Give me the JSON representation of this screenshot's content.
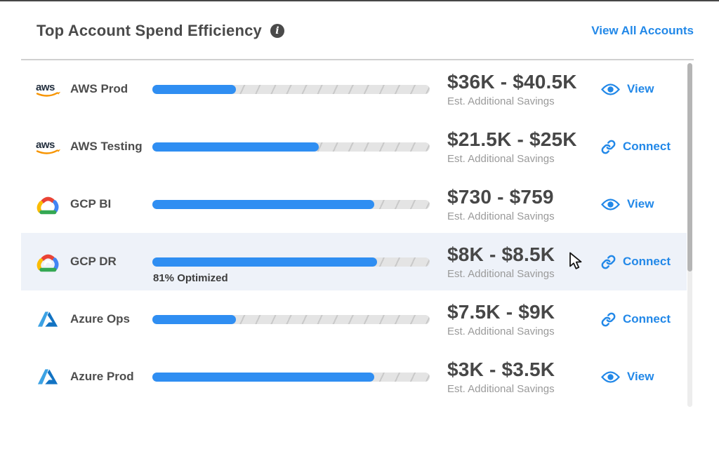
{
  "header": {
    "title": "Top Account Spend Efficiency",
    "info_icon_glyph": "i",
    "view_all_label": "View All Accounts"
  },
  "labels": {
    "savings_sublabel": "Est. Additional Savings"
  },
  "accounts": [
    {
      "provider": "aws",
      "name": "AWS Prod",
      "optimized_pct": 30,
      "savings_range": "$36K - $40.5K",
      "action": "View"
    },
    {
      "provider": "aws",
      "name": "AWS Testing",
      "optimized_pct": 60,
      "savings_range": "$21.5K - $25K",
      "action": "Connect"
    },
    {
      "provider": "gcp",
      "name": "GCP BI",
      "optimized_pct": 80,
      "savings_range": "$730 - $759",
      "action": "View"
    },
    {
      "provider": "gcp",
      "name": "GCP DR",
      "optimized_pct": 81,
      "savings_range": "$8K - $8.5K",
      "action": "Connect",
      "optimized_label": "81% Optimized",
      "highlighted": true
    },
    {
      "provider": "azure",
      "name": "Azure Ops",
      "optimized_pct": 30,
      "savings_range": "$7.5K - $9K",
      "action": "Connect"
    },
    {
      "provider": "azure",
      "name": "Azure Prod",
      "optimized_pct": 80,
      "savings_range": "$3K - $3.5K",
      "action": "View"
    }
  ],
  "colors": {
    "accent_blue": "#2288e8",
    "bar_fill": "#2f8ef2",
    "bar_track": "#e4e4e4",
    "row_highlight": "#eef2f9",
    "aws_orange": "#f79400",
    "gcp_red": "#ea4335",
    "gcp_blue": "#4285f4",
    "gcp_yellow": "#fbbc05",
    "gcp_green": "#34a853",
    "azure_blue": "#1273c3"
  }
}
